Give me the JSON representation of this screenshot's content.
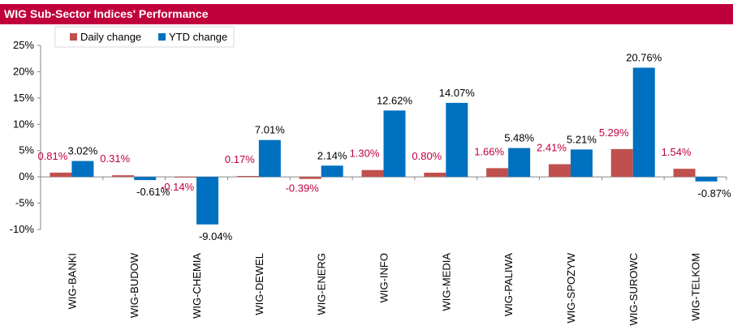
{
  "title": "WIG Sub-Sector Indices' Performance",
  "colors": {
    "title_bg": "#c0003c",
    "daily": "#c0504d",
    "ytd": "#0070c0",
    "daily_label": "#c0003c",
    "ytd_label": "#000000",
    "axis": "#868686"
  },
  "chart_data": {
    "type": "bar",
    "categories": [
      "WIG-BANKI",
      "WIG-BUDOW",
      "WIG-CHEMIA",
      "WIG-DEWEL",
      "WIG-ENERG",
      "WIG-INFO",
      "WIG-MEDIA",
      "WIG-PALIWA",
      "WIG-SPOZYW",
      "WIG-SUROWC",
      "WIG-TELKOM"
    ],
    "series": [
      {
        "name": "Daily change",
        "values": [
          0.81,
          0.31,
          -0.14,
          0.17,
          -0.39,
          1.3,
          0.8,
          1.66,
          2.41,
          5.29,
          1.54
        ],
        "labels": [
          "0.81%",
          "0.31%",
          "-0.14%",
          "0.17%",
          "-0.39%",
          "1.30%",
          "0.80%",
          "1.66%",
          "2.41%",
          "5.29%",
          "1.54%"
        ]
      },
      {
        "name": "YTD change",
        "values": [
          3.02,
          -0.61,
          -9.04,
          7.01,
          2.14,
          12.62,
          14.07,
          5.48,
          5.21,
          20.76,
          -0.87
        ],
        "labels": [
          "3.02%",
          "-0.61%",
          "-9.04%",
          "7.01%",
          "2.14%",
          "12.62%",
          "14.07%",
          "5.48%",
          "5.21%",
          "20.76%",
          "-0.87%"
        ]
      }
    ],
    "ylim": [
      -10,
      25
    ],
    "yticks": [
      25,
      20,
      15,
      10,
      5,
      0,
      -5,
      -10
    ],
    "ytick_labels": [
      "25%",
      "20%",
      "15%",
      "10%",
      "5%",
      "0%",
      "-5%",
      "-10%"
    ],
    "legend": "top-left",
    "grid": false
  }
}
